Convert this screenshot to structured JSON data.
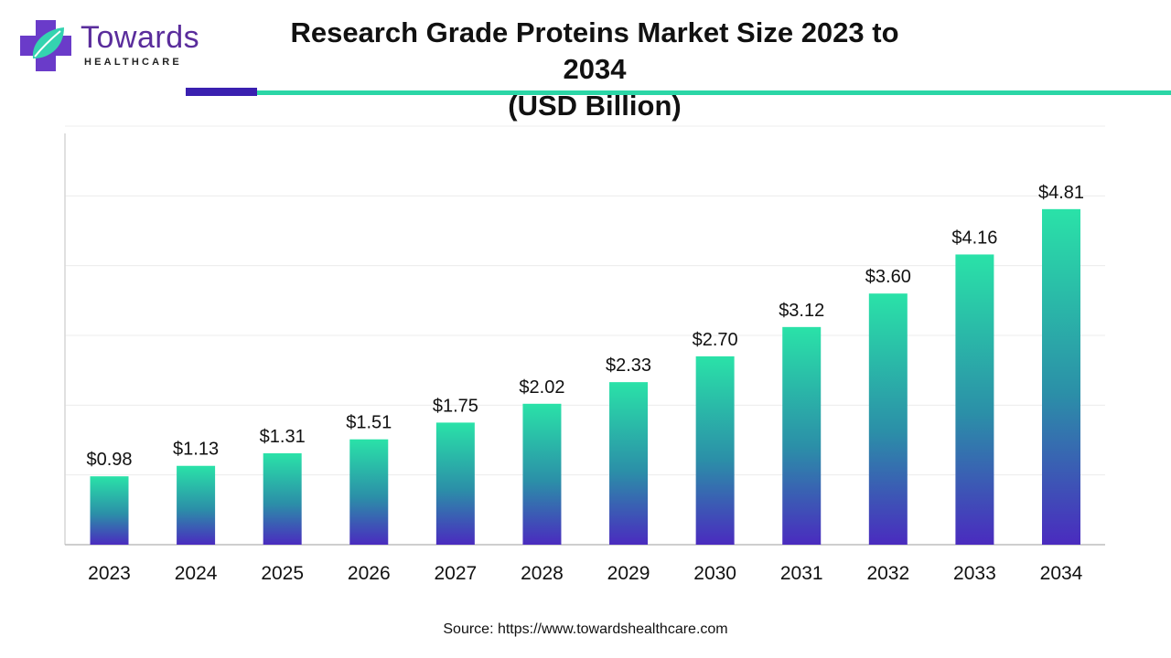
{
  "brand": {
    "name": "Towards",
    "subtitle": "HEALTHCARE",
    "colors": {
      "primary": "#5a2d9c",
      "accent": "#2bd6a6",
      "dark_accent": "#3a20b0"
    }
  },
  "chart_data": {
    "type": "bar",
    "title": "Research Grade Proteins Market Size 2023 to 2034 (USD Billion)",
    "title_lines": [
      "Research Grade Proteins Market Size 2023 to 2034",
      "(USD Billion)"
    ],
    "categories": [
      "2023",
      "2024",
      "2025",
      "2026",
      "2027",
      "2028",
      "2029",
      "2030",
      "2031",
      "2032",
      "2033",
      "2034"
    ],
    "values": [
      0.98,
      1.13,
      1.31,
      1.51,
      1.75,
      2.02,
      2.33,
      2.7,
      3.12,
      3.6,
      4.16,
      4.81
    ],
    "data_labels": [
      "$0.98",
      "$1.13",
      "$1.31",
      "$1.51",
      "$1.75",
      "$2.02",
      "$2.33",
      "$2.70",
      "$3.12",
      "$3.60",
      "$4.16",
      "$4.81"
    ],
    "xlabel": "",
    "ylabel": "",
    "ylim": [
      0,
      6
    ],
    "grid": true,
    "bar_gradient": {
      "top": "#2ae2a8",
      "middle": "#2b8fa8",
      "bottom": "#4a2bbf"
    }
  },
  "source": "Source: https://www.towardshealthcare.com"
}
